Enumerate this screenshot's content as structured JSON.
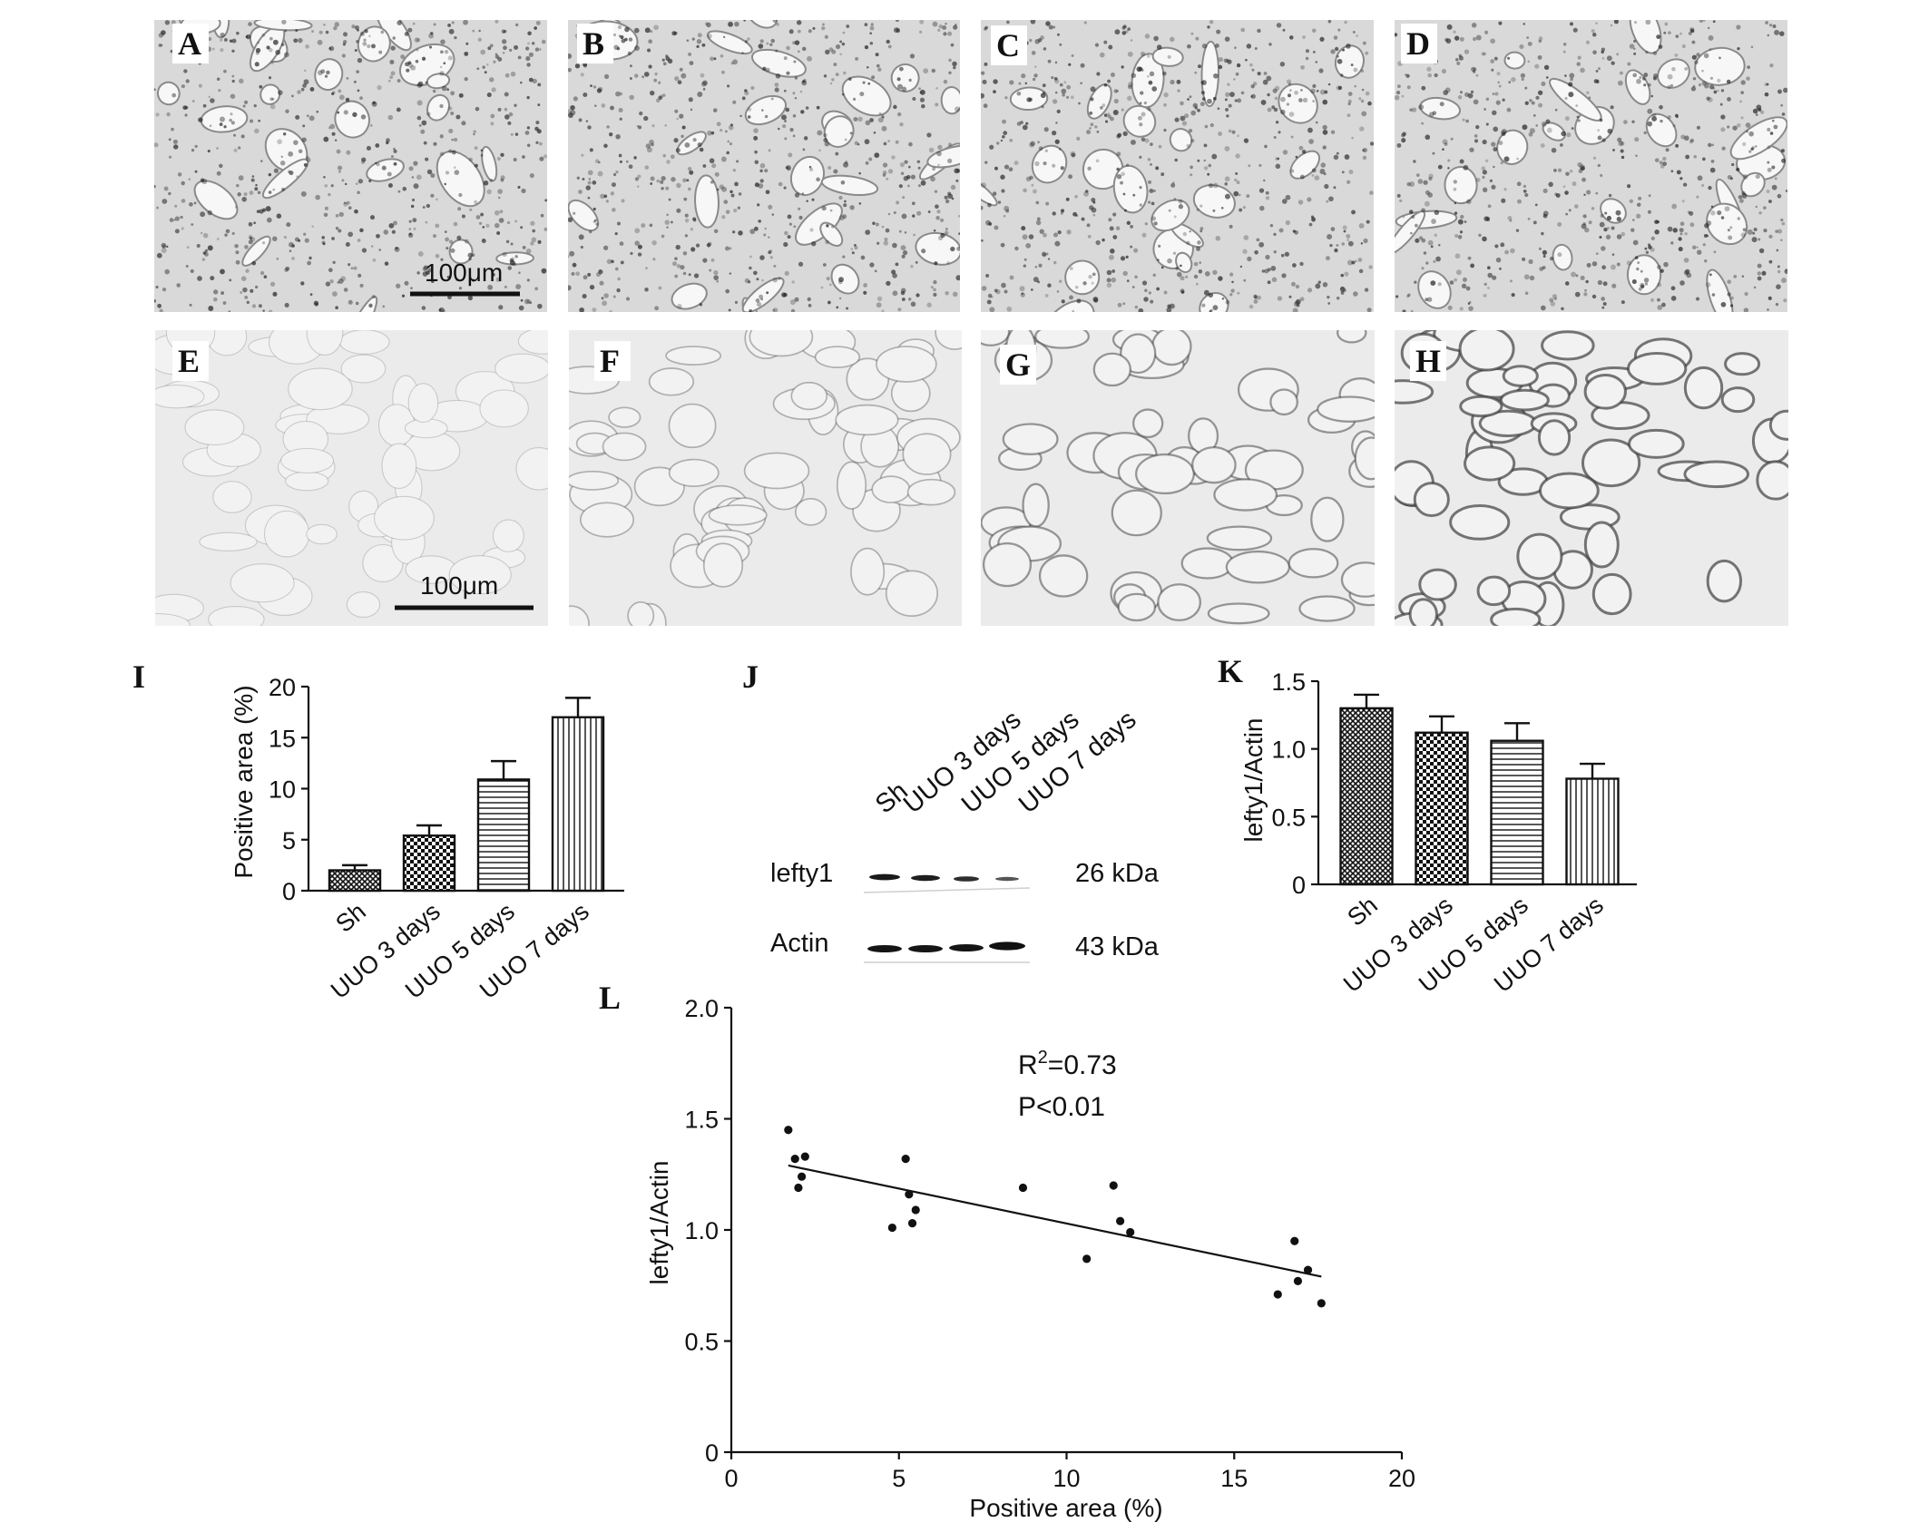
{
  "panel_labels": [
    "A",
    "B",
    "C",
    "D",
    "E",
    "F",
    "G",
    "H",
    "I",
    "J",
    "K",
    "L"
  ],
  "scale_bars": {
    "he_row": "100μm",
    "ihc_row": "100μm"
  },
  "micrographs": {
    "he_row": {
      "panels": [
        "A",
        "B",
        "C",
        "D"
      ],
      "tone": "#c9c9c9",
      "dense_tone": "#4a4a4a"
    },
    "ihc_row": {
      "panels": [
        "E",
        "F",
        "G",
        "H"
      ],
      "tone": "#e6e6e6",
      "stain_levels": [
        0.1,
        0.35,
        0.6,
        0.9
      ]
    }
  },
  "blot": {
    "lane_labels": [
      "Sh",
      "UUO 3 days",
      "UUO 5 days",
      "UUO 7 days"
    ],
    "rows": [
      {
        "label": "lefty1",
        "size": "26  kDa"
      },
      {
        "label": "Actin",
        "size": "43  kDa"
      }
    ]
  },
  "colors": {
    "ink": "#111111",
    "background": "#ffffff"
  },
  "chart_data": [
    {
      "panel": "I",
      "type": "bar",
      "categories": [
        "Sh",
        "UUO 3 days",
        "UUO 5 days",
        "UUO 7 days"
      ],
      "values": [
        2.0,
        5.4,
        10.9,
        17.0
      ],
      "errors": [
        0.5,
        1.0,
        1.8,
        1.9
      ],
      "patterns": [
        "crosshatch",
        "checker",
        "horizontal",
        "vertical"
      ],
      "ylabel": "Positive area (%)",
      "ylim": [
        0,
        20
      ],
      "yticks": [
        "0",
        "5",
        "10",
        "15",
        "20"
      ]
    },
    {
      "panel": "K",
      "type": "bar",
      "categories": [
        "Sh",
        "UUO 3 days",
        "UUO 5 days",
        "UUO 7 days"
      ],
      "values": [
        1.3,
        1.12,
        1.06,
        0.78
      ],
      "errors": [
        0.1,
        0.12,
        0.13,
        0.11
      ],
      "patterns": [
        "crosshatch",
        "checker",
        "horizontal",
        "vertical"
      ],
      "ylabel": "lefty1/Actin",
      "ylim": [
        0,
        1.5
      ],
      "yticks": [
        "0",
        "0.5",
        "1.0",
        "1.5"
      ]
    },
    {
      "panel": "L",
      "type": "scatter",
      "xlabel": "Positive area (%)",
      "ylabel": "lefty1/Actin",
      "xlim": [
        0,
        20
      ],
      "ylim": [
        0,
        2.0
      ],
      "xticks": [
        "0",
        "5",
        "10",
        "15",
        "20"
      ],
      "yticks": [
        "0",
        "0.5",
        "1.0",
        "1.5",
        "2.0"
      ],
      "points": [
        [
          1.7,
          1.45
        ],
        [
          1.9,
          1.32
        ],
        [
          2.1,
          1.24
        ],
        [
          2.0,
          1.19
        ],
        [
          2.2,
          1.33
        ],
        [
          4.8,
          1.01
        ],
        [
          5.2,
          1.32
        ],
        [
          5.3,
          1.16
        ],
        [
          5.5,
          1.09
        ],
        [
          5.4,
          1.03
        ],
        [
          8.7,
          1.19
        ],
        [
          10.6,
          0.87
        ],
        [
          11.4,
          1.2
        ],
        [
          11.6,
          1.04
        ],
        [
          11.9,
          0.99
        ],
        [
          16.3,
          0.71
        ],
        [
          16.8,
          0.95
        ],
        [
          16.9,
          0.77
        ],
        [
          17.2,
          0.82
        ],
        [
          17.6,
          0.67
        ]
      ],
      "fit": {
        "x": [
          1.7,
          17.6
        ],
        "y": [
          1.29,
          0.79
        ]
      },
      "annotation": {
        "r2_prefix": "R",
        "r2_sup": "2",
        "r2_value": "=0.73",
        "p": "P<0.01"
      }
    }
  ]
}
